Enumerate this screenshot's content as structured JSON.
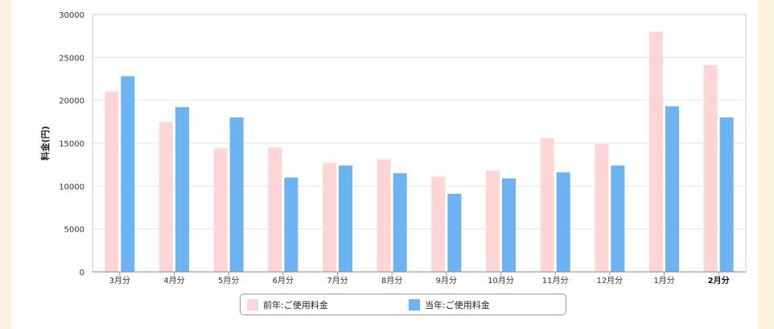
{
  "chart_data": {
    "type": "bar",
    "ylabel": "料金(円)",
    "ylim": [
      0,
      30000
    ],
    "yticks": [
      "0",
      "5000",
      "10000",
      "15000",
      "20000",
      "25000",
      "30000"
    ],
    "categories": [
      "3月分",
      "4月分",
      "5月分",
      "6月分",
      "7月分",
      "8月分",
      "9月分",
      "10月分",
      "11月分",
      "12月分",
      "1月分",
      "2月分"
    ],
    "highlighted_category": "2月分",
    "series": [
      {
        "name": "前年:ご使用料金",
        "color": "#ffd5d5",
        "values": [
          21000,
          17500,
          14400,
          14500,
          12700,
          13100,
          11100,
          11800,
          15600,
          14900,
          28000,
          24100
        ]
      },
      {
        "name": "当年:ご使用料金",
        "color": "#6cb3f4",
        "values": [
          22800,
          19200,
          18000,
          11000,
          12400,
          11500,
          9100,
          10900,
          11600,
          12400,
          19300,
          18000
        ]
      }
    ],
    "grid": true,
    "legend_position": "bottom"
  }
}
